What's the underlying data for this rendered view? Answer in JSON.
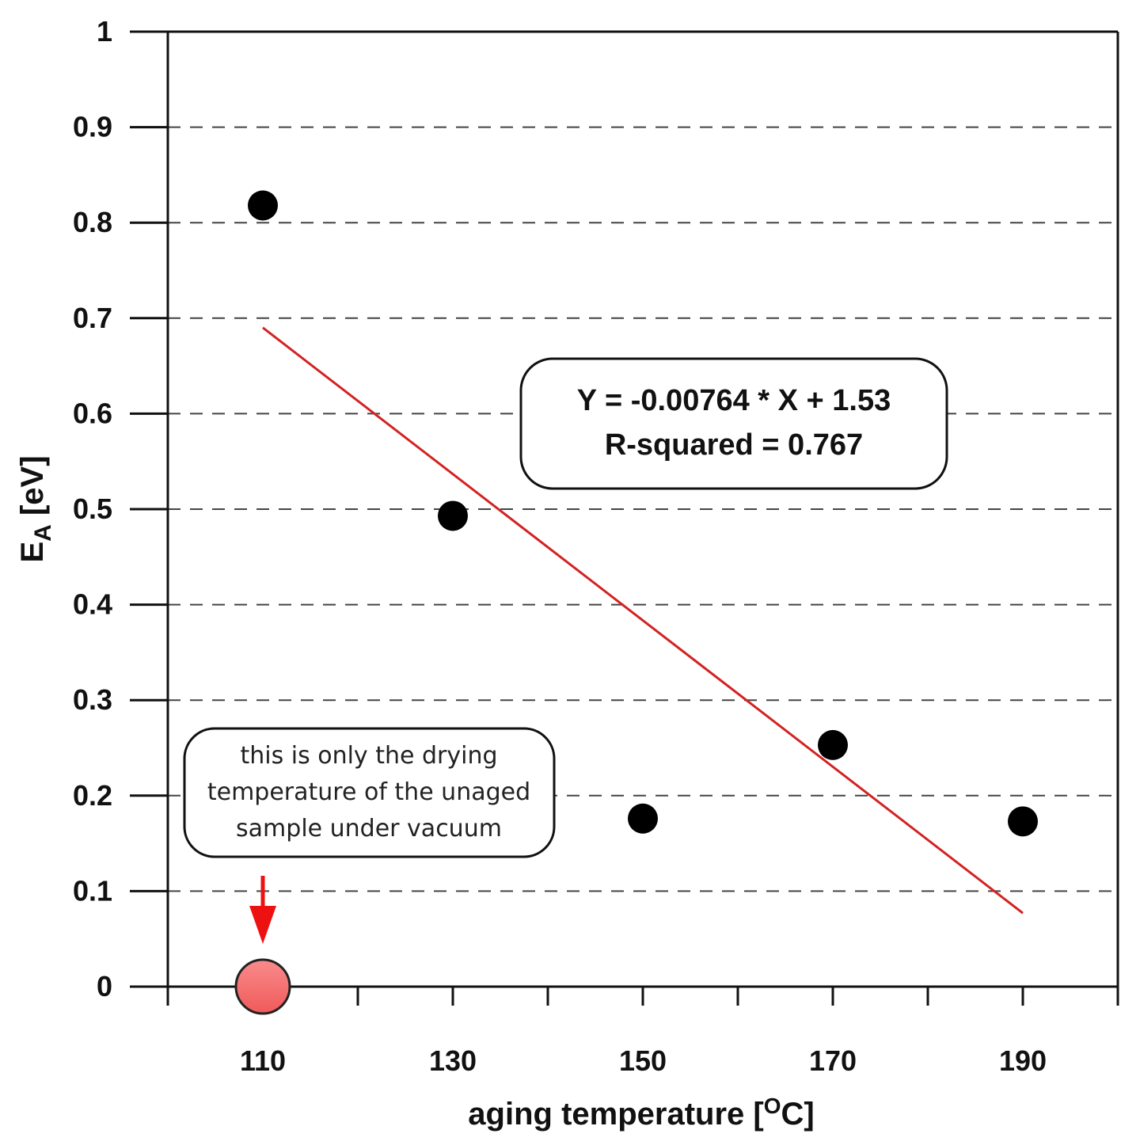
{
  "chart_data": {
    "type": "scatter",
    "title": "",
    "xlabel": "aging temperature [",
    "xlabel_sup": "O",
    "xlabel_end": "C]",
    "ylabel": "E",
    "ylabel_sub": "A",
    "ylabel_end": " [eV]",
    "xlim": [
      100,
      200
    ],
    "ylim": [
      0,
      1
    ],
    "x_ticks": [
      110,
      130,
      150,
      170,
      190
    ],
    "x_tick_labels": [
      "110",
      "130",
      "150",
      "170",
      "190"
    ],
    "y_ticks": [
      0,
      0.1,
      0.2,
      0.3,
      0.4,
      0.5,
      0.6,
      0.7,
      0.8,
      0.9,
      1
    ],
    "y_tick_labels": [
      "0",
      "0.1",
      "0.2",
      "0.3",
      "0.4",
      "0.5",
      "0.6",
      "0.7",
      "0.8",
      "0.9",
      "1"
    ],
    "grid": "horizontal-dashed",
    "series": [
      {
        "x": [
          110,
          130,
          150,
          170,
          190
        ],
        "y": [
          0.818,
          0.493,
          0.176,
          0.253,
          0.173
        ],
        "color": "#000000"
      }
    ],
    "special_point": {
      "x": 110,
      "y": 0,
      "color": "#f46a6a"
    },
    "fit_line": {
      "x": [
        110,
        190
      ],
      "y": [
        0.69,
        0.077
      ],
      "color": "#d32222"
    },
    "equation_box": {
      "line1": "Y = -0.00764 * X + 1.53",
      "line2": "R-squared = 0.767"
    },
    "annotation": {
      "lines": [
        "this is only the drying",
        "temperature of the unaged",
        "sample under vacuum"
      ],
      "arrow_color": "#ee1111"
    }
  }
}
